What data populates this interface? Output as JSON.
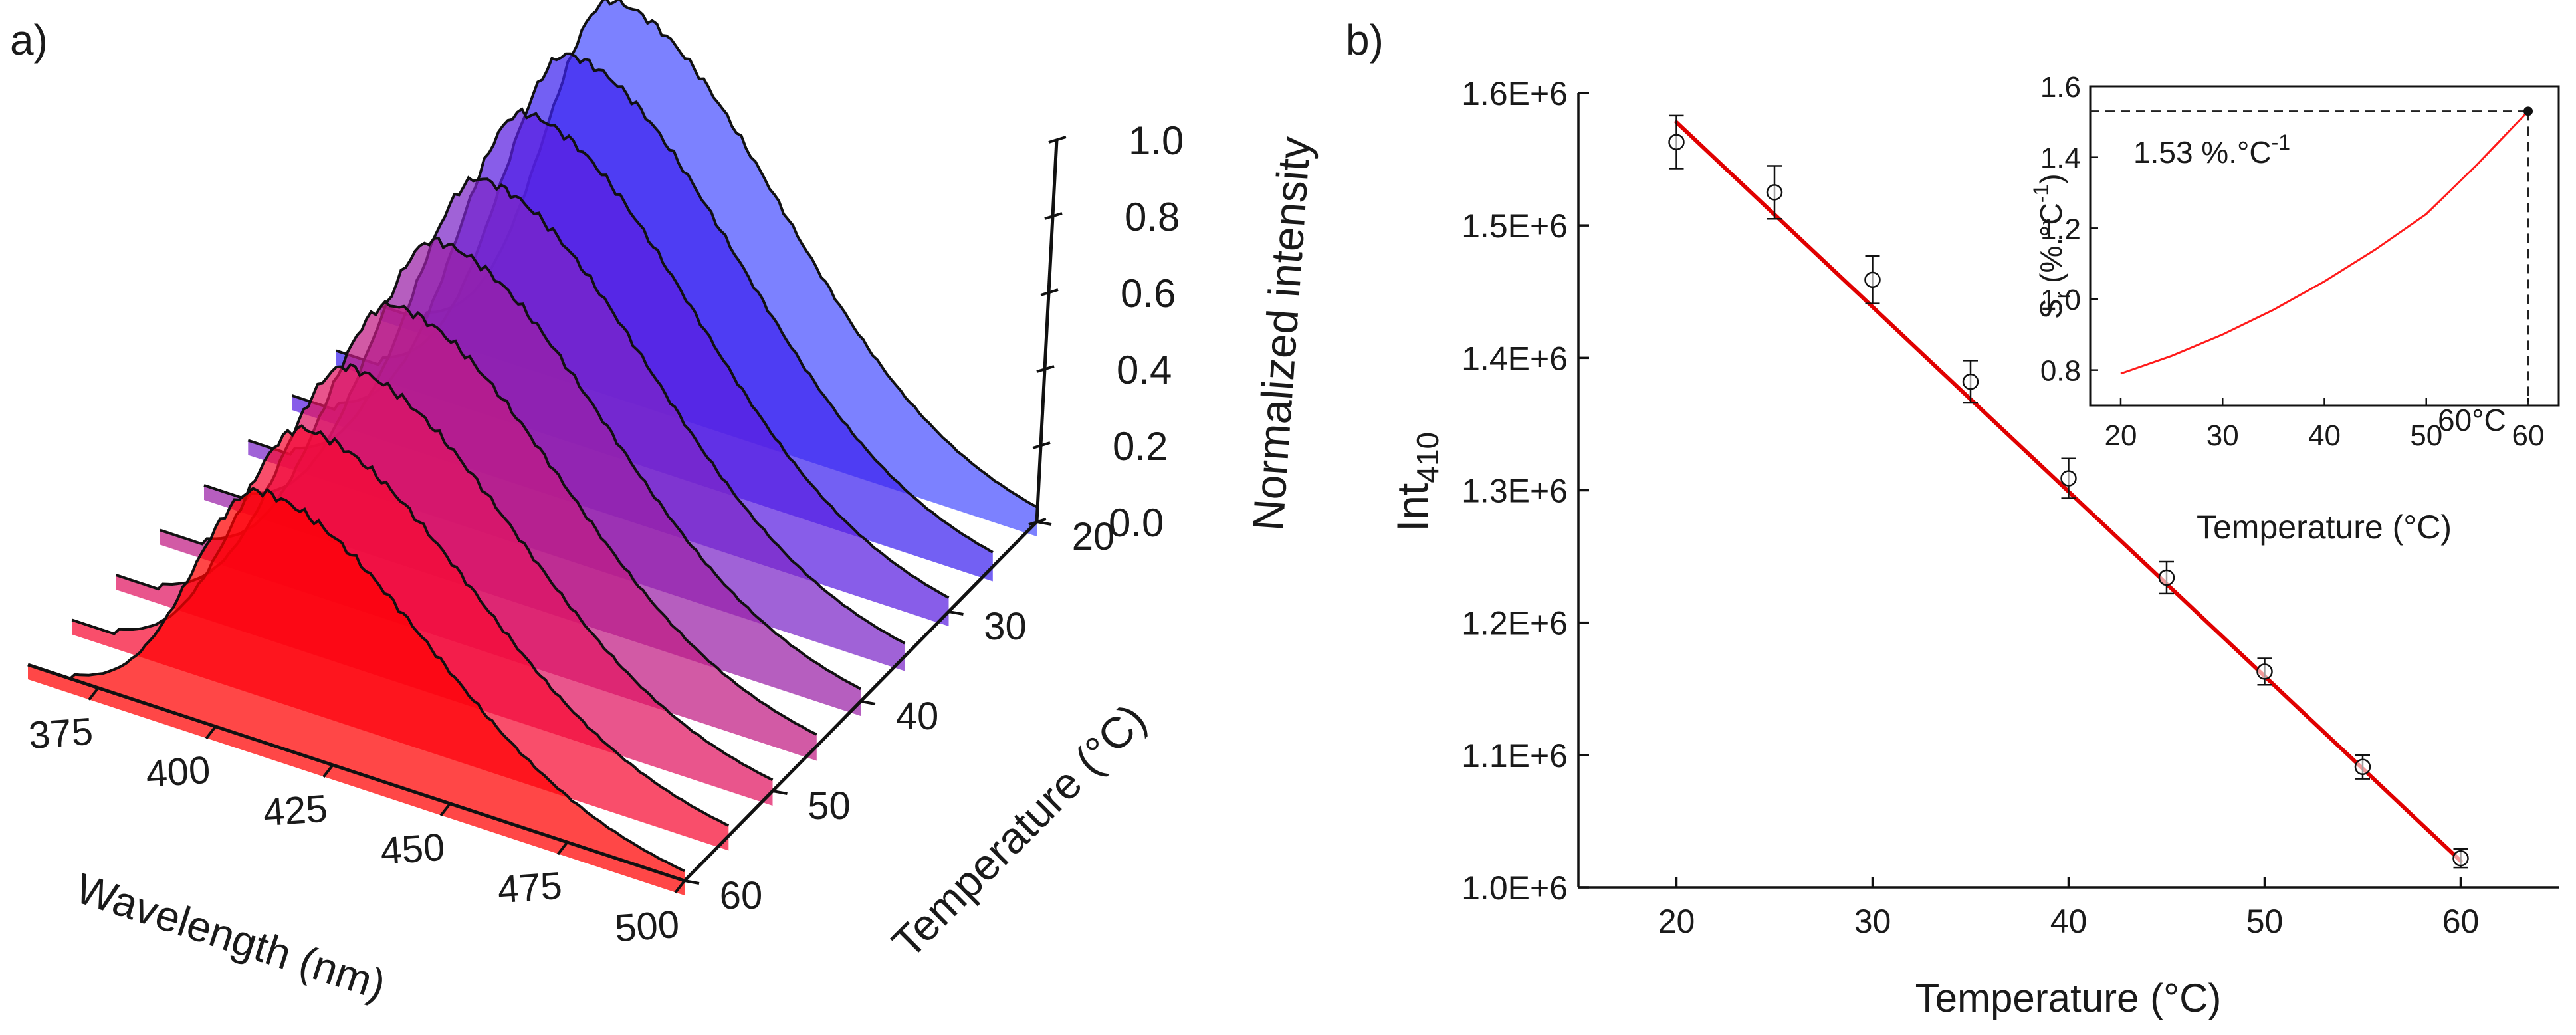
{
  "chart_data": [
    {
      "panel_label": "a)",
      "type": "area",
      "title": "",
      "xlabel": "Wavelength (nm)",
      "ylabel": "Temperature (°C)",
      "zlabel": "Normalized intensity",
      "x_ticks": [
        375,
        400,
        425,
        450,
        475,
        500
      ],
      "y_ticks": [
        20,
        30,
        40,
        50,
        60
      ],
      "z_ticks": [
        "0.0",
        "0.2",
        "0.4",
        "0.6",
        "0.8",
        "1.0"
      ],
      "xlim": [
        360,
        500
      ],
      "zlim": [
        0,
        1.0
      ],
      "peak_wavelength": 410,
      "series": [
        {
          "name": "20 °C",
          "color": "#4a50ff",
          "peak": 1.0
        },
        {
          "name": "25 °C",
          "color": "#3d22ee",
          "peak": 0.975
        },
        {
          "name": "30 °C",
          "color": "#5a1ee0",
          "peak": 0.94
        },
        {
          "name": "35 °C",
          "color": "#7b26c8",
          "peak": 0.885
        },
        {
          "name": "40 °C",
          "color": "#9a20a6",
          "peak": 0.84
        },
        {
          "name": "45 °C",
          "color": "#c01a82",
          "peak": 0.79
        },
        {
          "name": "50 °C",
          "color": "#e01460",
          "peak": 0.745
        },
        {
          "name": "55 °C",
          "color": "#f70a32",
          "peak": 0.7
        },
        {
          "name": "60 °C",
          "color": "#ff0000",
          "peak": 0.655
        }
      ]
    },
    {
      "panel_label": "b)",
      "type": "scatter",
      "title": "",
      "xlabel": "Temperature (°C)",
      "ylabel_main": "Int",
      "ylabel_sub": "410",
      "x": [
        20,
        25,
        30,
        35,
        40,
        45,
        50,
        55,
        60
      ],
      "series": [
        {
          "name": "Int410",
          "values": [
            1563000,
            1525000,
            1459000,
            1382000,
            1309000,
            1234000,
            1163000,
            1091000,
            1022000
          ],
          "errors": [
            20000,
            20000,
            18000,
            16000,
            15000,
            12000,
            10000,
            9000,
            7000
          ],
          "color": "#000000"
        },
        {
          "name": "Linear fit",
          "fit_start": [
            20,
            1578000
          ],
          "fit_end": [
            60,
            1020000
          ],
          "color": "#e00000"
        }
      ],
      "xlim": [
        15,
        65
      ],
      "ylim": [
        1000000,
        1600000
      ],
      "x_ticks": [
        20,
        30,
        40,
        50,
        60
      ],
      "y_ticks": [
        "1.0E+6",
        "1.1E+6",
        "1.2E+6",
        "1.3E+6",
        "1.4E+6",
        "1.5E+6",
        "1.6E+6"
      ],
      "y_tick_values": [
        1000000,
        1100000,
        1200000,
        1300000,
        1400000,
        1500000,
        1600000
      ]
    },
    {
      "panel_label": "inset",
      "type": "line",
      "xlabel": "Temperature (°C)",
      "ylabel": "Sr (%.°C-1)",
      "x": [
        20,
        25,
        30,
        35,
        40,
        45,
        50,
        55,
        60
      ],
      "series": [
        {
          "name": "Sr",
          "values": [
            0.79,
            0.84,
            0.9,
            0.97,
            1.05,
            1.14,
            1.24,
            1.38,
            1.53
          ],
          "color": "#ff1a1a"
        }
      ],
      "xlim": [
        17,
        63
      ],
      "ylim": [
        0.7,
        1.6
      ],
      "x_ticks": [
        20,
        30,
        40,
        50,
        60
      ],
      "y_ticks": [
        "0.8",
        "1.0",
        "1.2",
        "1.4",
        "1.6"
      ],
      "y_tick_values": [
        0.8,
        1.0,
        1.2,
        1.4,
        1.6
      ],
      "annotation_value": "1.53 %.°C",
      "annotation_sup": "-1",
      "annotation_temp": "60°C",
      "max_point": [
        60,
        1.53
      ]
    }
  ]
}
